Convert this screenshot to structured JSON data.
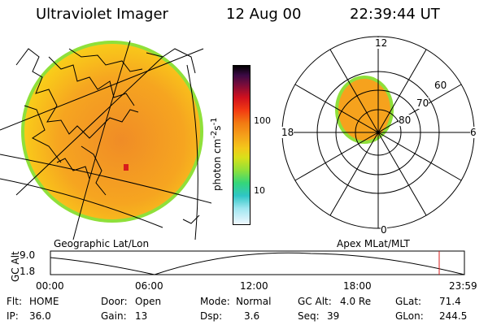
{
  "header": {
    "instrument": "Ultraviolet Imager",
    "date": "12 Aug 00",
    "time": "22:39:44 UT"
  },
  "colorbar": {
    "unit_label": "photon cm",
    "unit_sup1": "-2",
    "unit_mid": "s",
    "unit_sup2": "-1",
    "ticks": [
      "100",
      "10"
    ]
  },
  "polar_plot": {
    "mlt_labels": {
      "top": "12",
      "right": "6",
      "bottom": "0",
      "left": "18"
    },
    "lat_labels": [
      "60",
      "70",
      "80"
    ]
  },
  "panels": {
    "left_label": "Geographic Lat/Lon",
    "right_label": "Apex MLat/MLT"
  },
  "altitude_plot": {
    "ylabel": "GC Alt",
    "yticks": [
      "9.0",
      "1.8"
    ],
    "xticks": [
      "00:00",
      "06:00",
      "12:00",
      "18:00",
      "23:59"
    ]
  },
  "status": {
    "flt_label": "Flt:",
    "flt_value": "HOME",
    "ip_label": "IP:",
    "ip_value": "36.0",
    "door_label": "Door:",
    "door_value": "Open",
    "gain_label": "Gain:",
    "gain_value": "13",
    "mode_label": "Mode:",
    "mode_value": "Normal",
    "dsp_label": "Dsp:",
    "dsp_value": "3.6",
    "gcalt_label": "GC Alt:",
    "gcalt_value": "4.0 Re",
    "seq_label": "Seq:",
    "seq_value": "39",
    "glat_label": "GLat:",
    "glat_value": "71.4",
    "glon_label": "GLon:",
    "glon_value": "244.5"
  },
  "colors": {
    "auroral_main": "#f6a21d",
    "auroral_edge": "#8fe03a",
    "marker": "#d81b1b"
  }
}
